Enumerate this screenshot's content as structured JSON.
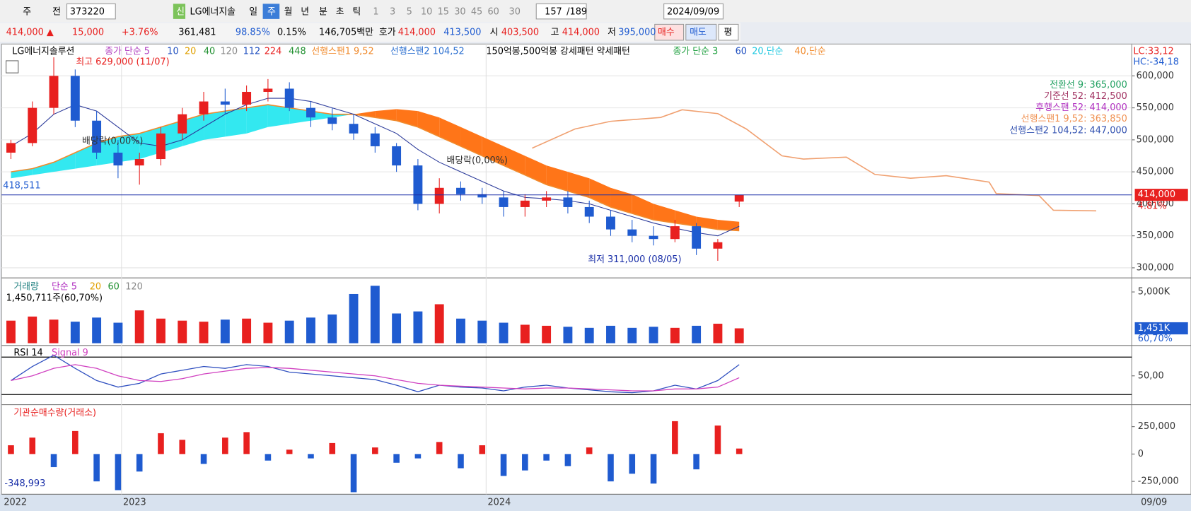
{
  "toolbar": {
    "items": [
      "주",
      "전",
      "373220",
      "신",
      "LG에너지솔",
      "일",
      "주",
      "월",
      "년",
      "분",
      "초",
      "틱",
      "1",
      "3",
      "5",
      "10",
      "15",
      "30",
      "45",
      "60",
      "30",
      "157",
      "/189",
      "2024/09/09"
    ]
  },
  "quote": {
    "items": [
      "414,000 ▲",
      "15,000",
      "+3.76%",
      "361,481",
      "98.85%",
      "0.15%",
      "146,705백만",
      "호가",
      "414,000",
      "413,500",
      "시",
      "403,500",
      "고",
      "414,000",
      "저",
      "395,000",
      "매수",
      "매도",
      "평"
    ]
  },
  "price_panel": {
    "title": "LG에너지솔루션",
    "legend": [
      "종가 단순 5",
      "10",
      "20",
      "40",
      "120",
      "112",
      "224",
      "448",
      "선행스팬1 9,52",
      "선행스팬2 104,52",
      "150억봉,500억봉 강세패턴  약세패턴",
      "종가 단순 3",
      "60",
      "20,단순",
      "40,단순"
    ],
    "corner": [
      "LC:33,12",
      "HC:-34,18"
    ],
    "ylim": [
      289000,
      645000
    ],
    "yticks": [
      {
        "value": 300000,
        "label": "300,000"
      },
      {
        "value": 350000,
        "label": "350,000"
      },
      {
        "value": 400000,
        "label": "400,000"
      },
      {
        "value": 450000,
        "label": "450,000"
      },
      {
        "value": 500000,
        "label": "500,000"
      },
      {
        "value": 550000,
        "label": "550,000"
      },
      {
        "value": 600000,
        "label": "600,000"
      }
    ],
    "candles": {
      "open": [
        480000,
        495000,
        550000,
        600000,
        530000,
        480000,
        460000,
        470000,
        510000,
        540000,
        560000,
        555000,
        575000,
        580000,
        550000,
        535000,
        525000,
        510000,
        490000,
        460000,
        400000,
        425000,
        415000,
        410000,
        395000,
        405000,
        410000,
        395000,
        380000,
        360000,
        350000,
        345000,
        365000,
        330000,
        403500
      ],
      "high": [
        500000,
        560000,
        629000,
        610000,
        545000,
        500000,
        480000,
        520000,
        550000,
        575000,
        580000,
        585000,
        595000,
        590000,
        560000,
        550000,
        540000,
        520000,
        495000,
        470000,
        440000,
        435000,
        425000,
        420000,
        415000,
        420000,
        420000,
        405000,
        390000,
        375000,
        365000,
        375000,
        370000,
        345000,
        414000
      ],
      "low": [
        470000,
        490000,
        540000,
        520000,
        470000,
        440000,
        430000,
        460000,
        500000,
        530000,
        540000,
        545000,
        560000,
        545000,
        520000,
        515000,
        500000,
        480000,
        450000,
        390000,
        385000,
        405000,
        400000,
        380000,
        380000,
        395000,
        385000,
        370000,
        350000,
        340000,
        335000,
        340000,
        320000,
        311000,
        395000
      ],
      "close": [
        495000,
        550000,
        600000,
        530000,
        480000,
        460000,
        470000,
        510000,
        540000,
        560000,
        555000,
        575000,
        580000,
        550000,
        535000,
        525000,
        510000,
        490000,
        460000,
        400000,
        425000,
        415000,
        410000,
        395000,
        405000,
        410000,
        395000,
        380000,
        360000,
        350000,
        345000,
        365000,
        330000,
        340000,
        414000
      ]
    },
    "ma": [
      490000,
      510000,
      540000,
      555000,
      545000,
      520000,
      495000,
      490000,
      500000,
      520000,
      540000,
      555000,
      565000,
      565000,
      560000,
      550000,
      540000,
      525000,
      510000,
      485000,
      465000,
      450000,
      435000,
      420000,
      410000,
      408000,
      405000,
      400000,
      390000,
      380000,
      370000,
      362000,
      355000,
      350000,
      365000
    ],
    "span_a": [
      450000,
      455000,
      465000,
      480000,
      495000,
      505000,
      510000,
      520000,
      530000,
      540000,
      545000,
      550000,
      555000,
      550000,
      545000,
      540000,
      540000,
      535000,
      530000,
      520000,
      505000,
      490000,
      475000,
      460000,
      445000,
      430000,
      420000,
      410000,
      395000,
      385000,
      375000,
      370000,
      365000,
      360000,
      358000
    ],
    "span_b": [
      440000,
      445000,
      450000,
      455000,
      460000,
      465000,
      470000,
      480000,
      490000,
      500000,
      505000,
      510000,
      520000,
      525000,
      530000,
      535000,
      540000,
      545000,
      548000,
      545000,
      535000,
      520000,
      505000,
      490000,
      475000,
      460000,
      450000,
      440000,
      425000,
      415000,
      400000,
      390000,
      380000,
      375000,
      372000
    ],
    "span1_future": {
      "x": [
        74,
        80,
        85,
        92,
        95,
        100,
        104,
        109,
        112,
        118,
        122,
        127,
        132,
        138,
        139,
        145,
        147,
        153
      ],
      "values": [
        487000,
        517000,
        529000,
        535000,
        547000,
        541000,
        517000,
        475000,
        470000,
        473000,
        446000,
        440000,
        444000,
        434000,
        416000,
        413000,
        390000,
        389000
      ]
    },
    "current": {
      "value": 414000,
      "label": "414,000",
      "pct": "4.81%"
    },
    "left_label": "418,511",
    "annotations": {
      "high": "최고 629,000 (11/07)",
      "low": "최저 311,000 (08/05)",
      "dividend": "배당락(0,00%)"
    },
    "ichimoku_info": [
      "전환선 9: 365,000",
      "기준선 52: 412,500",
      "후행스팬 52: 414,000",
      "선행스팬1 9,52: 363,850",
      "선행스팬2 104,52: 447,000"
    ]
  },
  "volume_panel": {
    "legend": [
      "거래량",
      "단순 5",
      "20",
      "60",
      "120"
    ],
    "info": "1,450,711주(60,70%)",
    "ylim": [
      0,
      6000
    ],
    "yticks": [
      {
        "value": 5000,
        "label": "5,000K"
      }
    ],
    "values": [
      2200,
      2600,
      2300,
      2100,
      2500,
      2000,
      3200,
      2400,
      2200,
      2100,
      2300,
      2400,
      2000,
      2200,
      2500,
      2800,
      4800,
      5600,
      2900,
      3100,
      3800,
      2400,
      2200,
      2000,
      1800,
      1700,
      1600,
      1500,
      1700,
      1500,
      1600,
      1500,
      1700,
      1900,
      1451
    ],
    "current": {
      "value": 1451,
      "label": "1,451K",
      "pct": "60,70%"
    }
  },
  "rsi_panel": {
    "legend": [
      "RSI 14",
      "Signal 9"
    ],
    "ylim": [
      20,
      80
    ],
    "yticks": [
      {
        "value": 50,
        "label": "50,00"
      }
    ],
    "levels": [
      30,
      70
    ],
    "rsi": [
      45,
      60,
      72,
      58,
      45,
      38,
      42,
      52,
      56,
      60,
      58,
      62,
      60,
      54,
      52,
      50,
      48,
      46,
      40,
      33,
      40,
      38,
      37,
      34,
      38,
      40,
      37,
      35,
      33,
      32,
      34,
      40,
      36,
      45,
      62
    ],
    "signal": [
      45,
      50,
      58,
      62,
      58,
      50,
      45,
      44,
      47,
      52,
      55,
      58,
      59,
      58,
      56,
      54,
      52,
      50,
      46,
      42,
      40,
      39,
      38,
      37,
      36,
      37,
      37,
      36,
      35,
      34,
      34,
      36,
      36,
      38,
      48
    ]
  },
  "inst_panel": {
    "legend": "기관순매수량(거래소)",
    "ylim": [
      -361000,
      402000
    ],
    "yticks": [
      {
        "value": 250000,
        "label": "250,000"
      },
      0,
      {
        "value": -250000,
        "label": "-250,000"
      }
    ],
    "values": [
      80000,
      150000,
      -120000,
      210000,
      -250000,
      -330000,
      -160000,
      190000,
      130000,
      -90000,
      150000,
      200000,
      -60000,
      40000,
      -40000,
      100000,
      -348993,
      60000,
      -80000,
      -40000,
      110000,
      -130000,
      80000,
      -200000,
      -150000,
      -60000,
      -110000,
      60000,
      -250000,
      -180000,
      -270000,
      300000,
      -140000,
      260000,
      50000
    ],
    "min_label": "-348,993"
  },
  "time_axis": {
    "labels": [
      "2022",
      "2023",
      "2024",
      "09/09"
    ]
  }
}
